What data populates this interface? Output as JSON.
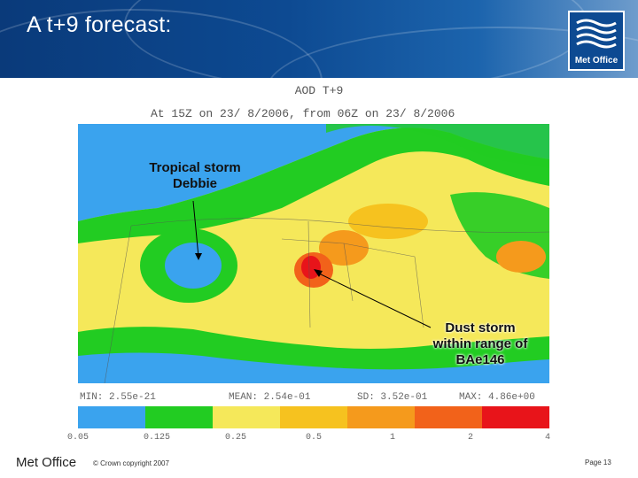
{
  "slide": {
    "title": "A t+9 forecast:"
  },
  "logo": {
    "text": "Met Office"
  },
  "plot": {
    "title": "AOD T+9",
    "subtitle": "At 15Z on 23/ 8/2006, from 06Z on 23/ 8/2006"
  },
  "annotations": {
    "storm_line1": "Tropical storm",
    "storm_line2": "Debbie",
    "dust_line1": "Dust storm",
    "dust_line2": "within range of",
    "dust_line3": "BAe146"
  },
  "stats": {
    "min": "MIN: 2.55e-21",
    "mean": "MEAN: 2.54e-01",
    "sd": "SD: 3.52e-01",
    "max": "MAX: 4.86e+00"
  },
  "colorbar": {
    "colors": [
      "#3aa3ee",
      "#22cc22",
      "#f5e85a",
      "#f6c21f",
      "#f59a1c",
      "#f2621a",
      "#e8141a"
    ],
    "ticks": [
      "0.05",
      "0.125",
      "0.25",
      "0.5",
      "1",
      "2",
      "4"
    ]
  },
  "footer": {
    "brand": "Met Office",
    "copyright": "© Crown copyright 2007",
    "page": "Page 13"
  }
}
